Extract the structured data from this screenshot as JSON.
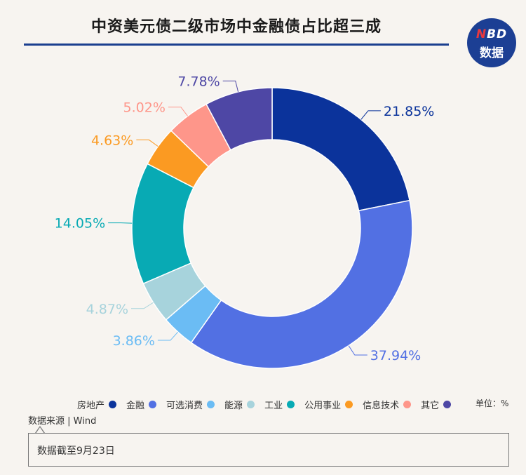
{
  "title": "中资美元债二级市场中金融债占比超三成",
  "logo": {
    "line1_a": "N",
    "line1_b": "BD",
    "line2": "数据"
  },
  "unit": "单位：%",
  "source": "数据来源 | Wind",
  "note": "数据截至9月23日",
  "chart_data": {
    "type": "pie",
    "variant": "donut",
    "title": "中资美元债二级市场中金融债占比超三成",
    "slices": [
      {
        "label": "房地产",
        "value": 21.85,
        "display": "21.85%",
        "color": "#0b339b"
      },
      {
        "label": "金融",
        "value": 37.94,
        "display": "37.94%",
        "color": "#5270e3"
      },
      {
        "label": "可选消费",
        "value": 3.86,
        "display": "3.86%",
        "color": "#6bbcf4"
      },
      {
        "label": "能源",
        "value": 4.87,
        "display": "4.87%",
        "color": "#a7d3dc"
      },
      {
        "label": "工业",
        "value": 14.05,
        "display": "14.05%",
        "color": "#08aab4"
      },
      {
        "label": "公用事业",
        "value": 4.63,
        "display": "4.63%",
        "color": "#fb9a22"
      },
      {
        "label": "信息技术",
        "value": 5.02,
        "display": "5.02%",
        "color": "#fe968a"
      },
      {
        "label": "其它",
        "value": 7.78,
        "display": "7.78%",
        "color": "#4e47a5"
      }
    ],
    "legend_position": "bottom"
  }
}
